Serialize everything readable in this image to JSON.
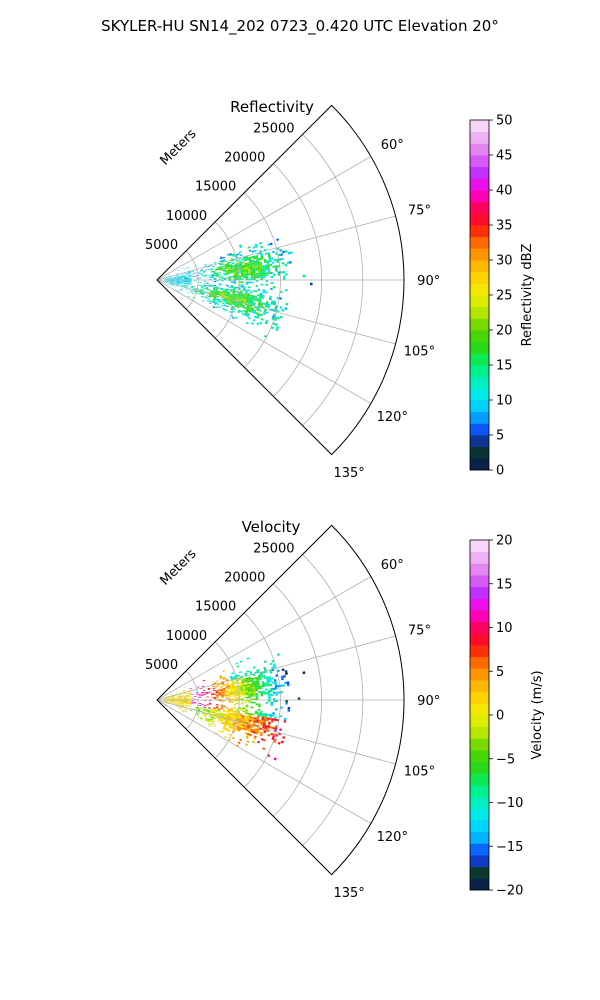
{
  "figure": {
    "suptitle": "SKYLER-HU  SN14_202  0723_0.420 UTC Elevation 20°"
  },
  "chart_data": [
    {
      "type": "heatmap",
      "title": "Reflectivity",
      "projection": "polar-sector",
      "azimuth_range_deg": [
        45,
        135
      ],
      "range_lim_m": [
        0,
        30000
      ],
      "range_axis_label": "Meters",
      "range_ticks": [
        "5000",
        "10000",
        "15000",
        "20000",
        "25000"
      ],
      "range_tick_values": [
        5000,
        10000,
        15000,
        20000,
        25000
      ],
      "azimuth_ticks": [
        "60°",
        "75°",
        "90°",
        "105°",
        "120°",
        "135°"
      ],
      "azimuth_tick_values": [
        60,
        75,
        90,
        105,
        120,
        135
      ],
      "grid": true,
      "colorbar": {
        "label": "Reflectivity dBZ",
        "range": [
          0,
          50
        ],
        "ticks": [
          "0",
          "5",
          "10",
          "15",
          "20",
          "25",
          "30",
          "35",
          "40",
          "45",
          "50"
        ],
        "tick_values": [
          0,
          5,
          10,
          15,
          20,
          25,
          30,
          35,
          40,
          45,
          50
        ],
        "colormap": "pyart_HomeyerRainbow",
        "stops": [
          [
            0,
            "#0b1752"
          ],
          [
            3,
            "#0a3a2e"
          ],
          [
            4.5,
            "#1033b0"
          ],
          [
            6,
            "#0a5cff"
          ],
          [
            8,
            "#00b4ff"
          ],
          [
            10,
            "#00e5ff"
          ],
          [
            12.5,
            "#00f0c0"
          ],
          [
            15,
            "#00f070"
          ],
          [
            17.5,
            "#2ad81a"
          ],
          [
            20,
            "#5ad400"
          ],
          [
            22.5,
            "#b4e600"
          ],
          [
            25,
            "#f0f000"
          ],
          [
            27.5,
            "#ffd200"
          ],
          [
            30,
            "#ffaa00"
          ],
          [
            32.5,
            "#ff6a00"
          ],
          [
            35,
            "#ff1010"
          ],
          [
            37.5,
            "#ff0060"
          ],
          [
            40,
            "#ff00e0"
          ],
          [
            42.5,
            "#c030ff"
          ],
          [
            45,
            "#e070f0"
          ],
          [
            47.5,
            "#f0b0f4"
          ],
          [
            50,
            "#fde7fb"
          ]
        ]
      }
    },
    {
      "type": "heatmap",
      "title": "Velocity",
      "projection": "polar-sector",
      "azimuth_range_deg": [
        45,
        135
      ],
      "range_lim_m": [
        0,
        30000
      ],
      "range_axis_label": "Meters",
      "range_ticks": [
        "5000",
        "10000",
        "15000",
        "20000",
        "25000"
      ],
      "range_tick_values": [
        5000,
        10000,
        15000,
        20000,
        25000
      ],
      "azimuth_ticks": [
        "60°",
        "75°",
        "90°",
        "105°",
        "120°",
        "135°"
      ],
      "azimuth_tick_values": [
        60,
        75,
        90,
        105,
        120,
        135
      ],
      "grid": true,
      "colorbar": {
        "label": "Velocity (m/s)",
        "range": [
          -20,
          20
        ],
        "ticks": [
          "−20",
          "−15",
          "−10",
          "−5",
          "0",
          "5",
          "10",
          "15",
          "20"
        ],
        "tick_values": [
          -20,
          -15,
          -10,
          -5,
          0,
          5,
          10,
          15,
          20
        ],
        "colormap": "pyart_HomeyerRainbow",
        "stops": [
          [
            -20,
            "#0b1752"
          ],
          [
            -18,
            "#0a3a2e"
          ],
          [
            -17,
            "#1033b0"
          ],
          [
            -15.5,
            "#0a5cff"
          ],
          [
            -14,
            "#00b4ff"
          ],
          [
            -12,
            "#00e5ff"
          ],
          [
            -10,
            "#00f0c0"
          ],
          [
            -8,
            "#00f070"
          ],
          [
            -6,
            "#2ad81a"
          ],
          [
            -4,
            "#5ad400"
          ],
          [
            -2,
            "#b4e600"
          ],
          [
            0,
            "#f0f000"
          ],
          [
            2,
            "#ffd200"
          ],
          [
            4,
            "#ffaa00"
          ],
          [
            6,
            "#ff6a00"
          ],
          [
            8,
            "#ff1010"
          ],
          [
            10,
            "#ff0060"
          ],
          [
            12,
            "#ff00e0"
          ],
          [
            14,
            "#c030ff"
          ],
          [
            16,
            "#e070f0"
          ],
          [
            18,
            "#f0b0f4"
          ],
          [
            20,
            "#fde7fb"
          ]
        ]
      }
    }
  ]
}
